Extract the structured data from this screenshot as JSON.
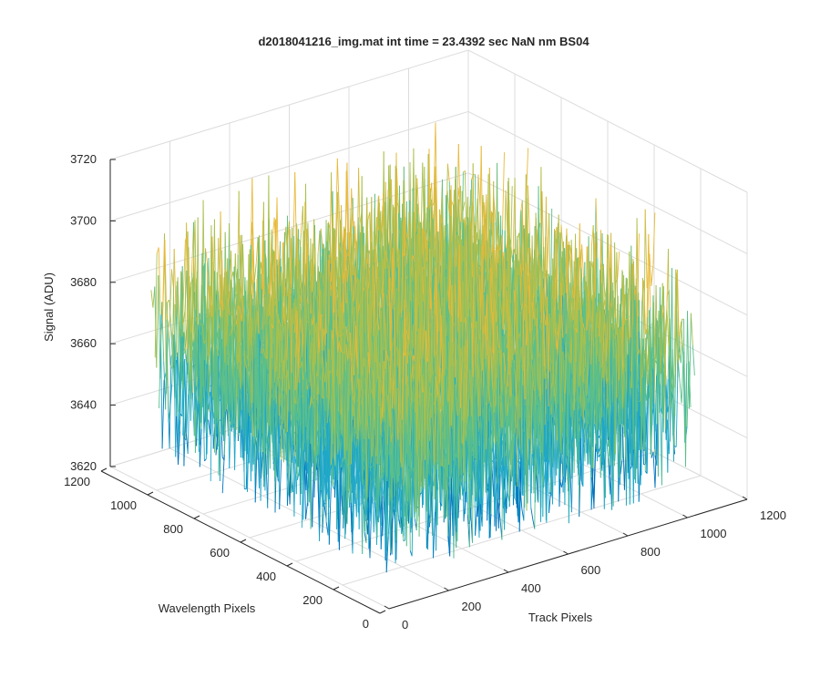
{
  "chart_data": {
    "type": "surface",
    "title": "d2018041216_img.mat int time = 23.4392 sec   NaN nm BS04",
    "xlabel": "Track Pixels",
    "ylabel": "Wavelength Pixels",
    "zlabel": "Signal (ADU)",
    "xlim": [
      0,
      1200
    ],
    "ylim": [
      0,
      1200
    ],
    "zlim": [
      3620,
      3720
    ],
    "xticks": [
      0,
      200,
      400,
      600,
      800,
      1000,
      1200
    ],
    "yticks": [
      0,
      200,
      400,
      600,
      800,
      1000,
      1200
    ],
    "zticks": [
      3620,
      3640,
      3660,
      3680,
      3700,
      3720
    ],
    "data_extent": {
      "x": [
        0,
        1024
      ],
      "y": [
        0,
        1024
      ]
    },
    "signal_mean": 3665,
    "signal_range": [
      3630,
      3712
    ],
    "grid": true,
    "colormap": [
      "#0072bd",
      "#1fa7c9",
      "#5bbf8a",
      "#a9c04e",
      "#e8b93a"
    ]
  }
}
